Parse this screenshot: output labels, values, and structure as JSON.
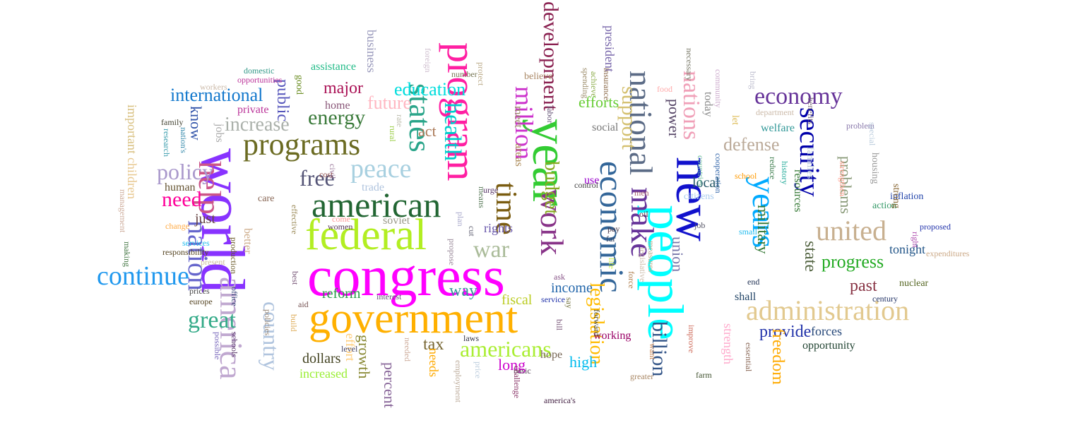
{
  "words": [
    {
      "text": "congress",
      "color": "#ff00ff"
    },
    {
      "text": "government",
      "color": "#ffb000"
    },
    {
      "text": "world",
      "color": "#8833ff"
    },
    {
      "text": "federal",
      "color": "#b2ee22"
    },
    {
      "text": "american",
      "color": "#226633"
    },
    {
      "text": "year",
      "color": "#33cc33"
    },
    {
      "text": "new",
      "color": "#1111cc"
    },
    {
      "text": "people",
      "color": "#00ffff"
    },
    {
      "text": "program",
      "color": "#ff1fa2"
    },
    {
      "text": "programs",
      "color": "#6b6b22"
    },
    {
      "text": "economic",
      "color": "#336699"
    },
    {
      "text": "years",
      "color": "#00aaff"
    },
    {
      "text": "administration",
      "color": "#e2c98f"
    },
    {
      "text": "national",
      "color": "#5b6b86"
    },
    {
      "text": "make",
      "color": "#663399"
    },
    {
      "text": "work",
      "color": "#883388"
    },
    {
      "text": "peace",
      "color": "#a8d0e0"
    },
    {
      "text": "states",
      "color": "#2aa58a"
    },
    {
      "text": "time",
      "color": "#7a5c10"
    },
    {
      "text": "help",
      "color": "#cc5588"
    },
    {
      "text": "america",
      "color": "#c0a8d0"
    },
    {
      "text": "nation",
      "color": "#6666cc"
    },
    {
      "text": "continue",
      "color": "#2299ee"
    },
    {
      "text": "united",
      "color": "#c8b090"
    },
    {
      "text": "economy",
      "color": "#663399"
    },
    {
      "text": "security",
      "color": "#0000aa"
    },
    {
      "text": "nations",
      "color": "#f0a0b8"
    },
    {
      "text": "million",
      "color": "#cc33cc"
    },
    {
      "text": "health",
      "color": "#00cccc"
    },
    {
      "text": "war",
      "color": "#aabb99"
    },
    {
      "text": "development",
      "color": "#8a2050"
    },
    {
      "text": "budget",
      "color": "#88aa22"
    },
    {
      "text": "legislation",
      "color": "#ffbb00"
    },
    {
      "text": "americans",
      "color": "#aaee33"
    },
    {
      "text": "billion",
      "color": "#335588"
    },
    {
      "text": "policy",
      "color": "#aa99cc"
    },
    {
      "text": "need",
      "color": "#ff0099"
    },
    {
      "text": "energy",
      "color": "#3a7a3a"
    },
    {
      "text": "great",
      "color": "#33aa88"
    },
    {
      "text": "free",
      "color": "#555577"
    },
    {
      "text": "country",
      "color": "#b0c4de"
    },
    {
      "text": "support",
      "color": "#d4c070"
    },
    {
      "text": "increase",
      "color": "#aab0aa"
    },
    {
      "text": "international",
      "color": "#1177cc"
    },
    {
      "text": "education",
      "color": "#00dddd"
    },
    {
      "text": "future",
      "color": "#ffb6c1"
    },
    {
      "text": "major",
      "color": "#aa1155"
    },
    {
      "text": "progress",
      "color": "#22aa22"
    },
    {
      "text": "defense",
      "color": "#bbaa99"
    },
    {
      "text": "state",
      "color": "#556644"
    },
    {
      "text": "past",
      "color": "#883344"
    },
    {
      "text": "provide",
      "color": "#2233aa"
    },
    {
      "text": "freedom",
      "color": "#ffaa00"
    },
    {
      "text": "military",
      "color": "#337733"
    },
    {
      "text": "problems",
      "color": "#889977"
    },
    {
      "text": "efforts",
      "color": "#66cc33"
    },
    {
      "text": "tax",
      "color": "#776633"
    },
    {
      "text": "act",
      "color": "#aa7755"
    },
    {
      "text": "long",
      "color": "#cc00cc"
    },
    {
      "text": "way",
      "color": "#339999"
    },
    {
      "text": "know",
      "color": "#3355aa"
    },
    {
      "text": "public",
      "color": "#5555bb"
    },
    {
      "text": "growth",
      "color": "#888833"
    },
    {
      "text": "percent",
      "color": "#886699"
    },
    {
      "text": "high",
      "color": "#00bbee"
    },
    {
      "text": "union",
      "color": "#7777aa"
    },
    {
      "text": "power",
      "color": "#554466"
    },
    {
      "text": "forces",
      "color": "#224477"
    },
    {
      "text": "tonight",
      "color": "#225588"
    },
    {
      "text": "fiscal",
      "color": "#bbcc22"
    },
    {
      "text": "income",
      "color": "#2266aa"
    },
    {
      "text": "reform",
      "color": "#229944"
    },
    {
      "text": "dollars",
      "color": "#444422"
    },
    {
      "text": "rights",
      "color": "#6655aa"
    },
    {
      "text": "assistance",
      "color": "#22bb88"
    },
    {
      "text": "business",
      "color": "#9999bb"
    },
    {
      "text": "opportunity",
      "color": "#224433"
    },
    {
      "text": "president",
      "color": "#7766aa"
    },
    {
      "text": "local",
      "color": "#225566"
    },
    {
      "text": "just",
      "color": "#664444"
    },
    {
      "text": "human",
      "color": "#665533"
    },
    {
      "text": "private",
      "color": "#bb3399"
    },
    {
      "text": "children",
      "color": "#e8c890"
    },
    {
      "text": "important",
      "color": "#d8c080"
    },
    {
      "text": "jobs",
      "color": "#aaaaaa"
    },
    {
      "text": "increased",
      "color": "#99ee33"
    },
    {
      "text": "effort",
      "color": "#ffcc77"
    },
    {
      "text": "needs",
      "color": "#ffaa00"
    },
    {
      "text": "shall",
      "color": "#224466"
    },
    {
      "text": "resources",
      "color": "#337733"
    },
    {
      "text": "welfare",
      "color": "#339999"
    },
    {
      "text": "today",
      "color": "#888888"
    },
    {
      "text": "use",
      "color": "#9900cc"
    },
    {
      "text": "social",
      "color": "#777777"
    },
    {
      "text": "meet",
      "color": "#998866"
    },
    {
      "text": "areas",
      "color": "#aa8855"
    },
    {
      "text": "home",
      "color": "#885577"
    },
    {
      "text": "good",
      "color": "#6b8e23"
    },
    {
      "text": "soviet",
      "color": "#999988"
    },
    {
      "text": "trade",
      "color": "#b0c4de"
    },
    {
      "text": "better",
      "color": "#ccaa88"
    },
    {
      "text": "care",
      "color": "#886655"
    },
    {
      "text": "strength",
      "color": "#ffaacc"
    },
    {
      "text": "housing",
      "color": "#999999"
    },
    {
      "text": "inflation",
      "color": "#2244aa"
    },
    {
      "text": "action",
      "color": "#339966"
    },
    {
      "text": "nuclear",
      "color": "#556622"
    },
    {
      "text": "citizens",
      "color": "#aaccee"
    },
    {
      "text": "working",
      "color": "#990066"
    },
    {
      "text": "hope",
      "color": "#776655"
    },
    {
      "text": "believe",
      "color": "#aa8866"
    },
    {
      "text": "let",
      "color": "#ddbb55"
    },
    {
      "text": "families",
      "color": "#bbccdd"
    },
    {
      "text": "history",
      "color": "#22aa99"
    },
    {
      "text": "strong",
      "color": "#886633"
    },
    {
      "text": "control",
      "color": "#444444"
    },
    {
      "text": "ask",
      "color": "#885588"
    },
    {
      "text": "life",
      "color": "#ccee44"
    },
    {
      "text": "service",
      "color": "#2233aa"
    },
    {
      "text": "community",
      "color": "#ccaacc"
    },
    {
      "text": "interest",
      "color": "#665577"
    },
    {
      "text": "nation's",
      "color": "#3388aa"
    },
    {
      "text": "production",
      "color": "#665522"
    },
    {
      "text": "responsibility",
      "color": "#554422"
    },
    {
      "text": "services",
      "color": "#22bbee"
    },
    {
      "text": "europe",
      "color": "#554422"
    },
    {
      "text": "prices",
      "color": "#444444"
    },
    {
      "text": "present",
      "color": "#ccbb99"
    },
    {
      "text": "change",
      "color": "#ffaa44"
    },
    {
      "text": "domestic",
      "color": "#339988"
    },
    {
      "text": "opportunities",
      "color": "#bb3399"
    },
    {
      "text": "workers",
      "color": "#ccbbaa"
    },
    {
      "text": "family",
      "color": "#444433"
    },
    {
      "text": "research",
      "color": "#3399aa"
    },
    {
      "text": "management",
      "color": "#ccaa99"
    },
    {
      "text": "making",
      "color": "#447744"
    },
    {
      "text": "possible",
      "color": "#7766bb"
    },
    {
      "text": "schools",
      "color": "#553366"
    },
    {
      "text": "office",
      "color": "#334477"
    },
    {
      "text": "aid",
      "color": "#775555"
    },
    {
      "text": "policies",
      "color": "#998877"
    },
    {
      "text": "build",
      "color": "#ddaa55"
    },
    {
      "text": "best",
      "color": "#775577"
    },
    {
      "text": "effective",
      "color": "#998855"
    },
    {
      "text": "come",
      "color": "#ff9999"
    },
    {
      "text": "women",
      "color": "#553355"
    },
    {
      "text": "proposed",
      "color": "#2233aa"
    },
    {
      "text": "expenditures",
      "color": "#ccaa88"
    },
    {
      "text": "century",
      "color": "#223366"
    },
    {
      "text": "right",
      "color": "#aa44aa"
    },
    {
      "text": "job",
      "color": "#555566"
    },
    {
      "text": "pay",
      "color": "#443344"
    },
    {
      "text": "small",
      "color": "#22bbee"
    },
    {
      "text": "school",
      "color": "#ff9900"
    },
    {
      "text": "problem",
      "color": "#8877aa"
    },
    {
      "text": "department",
      "color": "#ccbbaa"
    },
    {
      "text": "food",
      "color": "#ffaaaa"
    },
    {
      "text": "greater",
      "color": "#aa8866"
    },
    {
      "text": "farm",
      "color": "#445533"
    },
    {
      "text": "laws",
      "color": "#333344"
    },
    {
      "text": "basic",
      "color": "#554455"
    },
    {
      "text": "america's",
      "color": "#442244"
    },
    {
      "text": "employment",
      "color": "#bbaa99"
    },
    {
      "text": "level",
      "color": "#444466"
    },
    {
      "text": "plan",
      "color": "#aaaacc"
    },
    {
      "text": "propose",
      "color": "#998899"
    },
    {
      "text": "means",
      "color": "#557755"
    },
    {
      "text": "urge",
      "color": "#553366"
    },
    {
      "text": "cost",
      "color": "#884444"
    },
    {
      "text": "civil",
      "color": "#997799"
    },
    {
      "text": "rate",
      "color": "#bbbbaa"
    },
    {
      "text": "rural",
      "color": "#99cc44"
    },
    {
      "text": "foreign",
      "color": "#ccbbcc"
    },
    {
      "text": "number",
      "color": "#777755"
    },
    {
      "text": "protect",
      "color": "#bbaa88"
    },
    {
      "text": "spending",
      "color": "#998866"
    },
    {
      "text": "achieve",
      "color": "#88aa44"
    },
    {
      "text": "insurance",
      "color": "#886644"
    },
    {
      "text": "necessary",
      "color": "#777766"
    },
    {
      "text": "bring",
      "color": "#bbbbcc"
    },
    {
      "text": "benefits",
      "color": "#776677"
    },
    {
      "text": "special",
      "color": "#bbccdd"
    },
    {
      "text": "strengthen",
      "color": "#ff9988"
    },
    {
      "text": "reduce",
      "color": "#337744"
    },
    {
      "text": "cooperation",
      "color": "#3366aa"
    },
    {
      "text": "countries",
      "color": "#66bb99"
    },
    {
      "text": "improve",
      "color": "#cc6655"
    },
    {
      "text": "essential",
      "color": "#886655"
    },
    {
      "text": "end",
      "color": "#223355"
    },
    {
      "text": "want",
      "color": "#cc8855"
    },
    {
      "text": "force",
      "color": "#aa7744"
    },
    {
      "text": "men",
      "color": "#aa6677"
    },
    {
      "text": "oil",
      "color": "#553344"
    },
    {
      "text": "far",
      "color": "#334466"
    },
    {
      "text": "say",
      "color": "#777744"
    },
    {
      "text": "bill",
      "color": "#775577"
    },
    {
      "text": "labor",
      "color": "#665577"
    },
    {
      "text": "forward",
      "color": "#444433"
    },
    {
      "text": "challenge",
      "color": "#883366"
    },
    {
      "text": "price",
      "color": "#bbccdd"
    },
    {
      "text": "needed",
      "color": "#ccaa99"
    },
    {
      "text": "cut",
      "color": "#666677"
    },
    {
      "text": "measures",
      "color": "#bbaa88"
    },
    {
      "text": "legislative",
      "color": "#ccbbaa"
    }
  ]
}
